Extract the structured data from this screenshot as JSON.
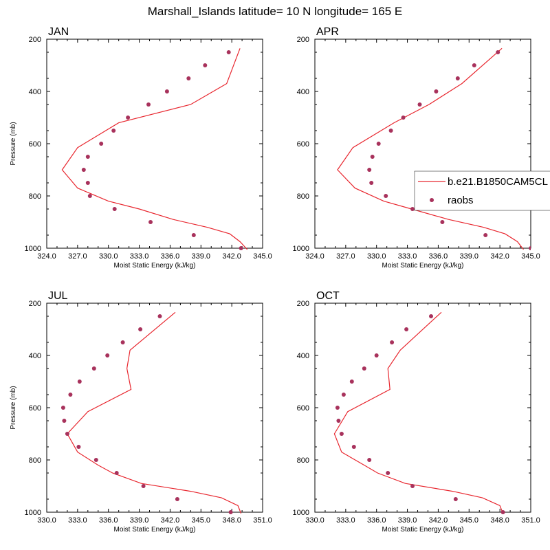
{
  "figure": {
    "title": "Marshall_Islands  latitude= 10 N longitude= 165 E"
  },
  "colors": {
    "model_line": "#e8262e",
    "obs_dot": "#a8325c",
    "axis": "#000000"
  },
  "legend": {
    "placement": "right of APR panel, partially clipped",
    "items": [
      {
        "label": "b.e21.B1850CAM5CL",
        "kind": "line"
      },
      {
        "label": "raobs",
        "kind": "dot"
      }
    ]
  },
  "chart_data": [
    {
      "type": "line+scatter",
      "panel": "JAN",
      "xlabel": "Moist Static Energy (kJ/kg)",
      "ylabel": "Pressure (mb)",
      "xlim": [
        324,
        345
      ],
      "ylim": [
        1000,
        200
      ],
      "xticks": [
        "324.0",
        "327.0",
        "330.0",
        "333.0",
        "336.0",
        "339.0",
        "342.0",
        "345.0"
      ],
      "yticks": [
        "200",
        "400",
        "600",
        "800",
        "1000"
      ],
      "series": [
        {
          "name": "b.e21.B1850CAM5CL",
          "x": [
            343.5,
            342.8,
            341.8,
            339.6,
            336.3,
            333.0,
            330.0,
            327.0,
            325.5,
            327.0,
            331.0,
            338.0,
            341.5,
            342.8
          ],
          "y": [
            1005,
            975,
            945,
            920,
            890,
            850,
            820,
            770,
            700,
            615,
            520,
            450,
            370,
            235
          ]
        },
        {
          "name": "raobs",
          "x": [
            342.9,
            338.3,
            334.1,
            330.6,
            328.2,
            328.0,
            327.6,
            328.0,
            329.3,
            330.5,
            331.9,
            333.9,
            335.7,
            337.8,
            339.4,
            341.7
          ],
          "y": [
            1000,
            950,
            900,
            850,
            800,
            750,
            700,
            650,
            600,
            550,
            500,
            450,
            400,
            350,
            300,
            250
          ]
        }
      ]
    },
    {
      "type": "line+scatter",
      "panel": "APR",
      "xlabel": "Moist Static Energy (kJ/kg)",
      "ylabel": "",
      "xlim": [
        324,
        345
      ],
      "ylim": [
        1000,
        200
      ],
      "xticks": [
        "324.0",
        "327.0",
        "330.0",
        "333.0",
        "336.0",
        "339.0",
        "342.0",
        "345.0"
      ],
      "yticks": [
        "200",
        "400",
        "600",
        "800",
        "1000"
      ],
      "series": [
        {
          "name": "b.e21.B1850CAM5CL",
          "x": [
            344.3,
            343.7,
            342.5,
            340.4,
            337.0,
            333.4,
            330.7,
            327.9,
            326.2,
            327.7,
            331.7,
            335.1,
            338.3,
            342.2
          ],
          "y": [
            1005,
            975,
            945,
            920,
            890,
            850,
            820,
            770,
            700,
            615,
            520,
            450,
            370,
            235
          ]
        },
        {
          "name": "raobs",
          "x": [
            345.0,
            340.6,
            336.4,
            333.5,
            330.9,
            329.5,
            329.3,
            329.6,
            330.2,
            331.4,
            332.6,
            334.2,
            335.8,
            337.9,
            339.5,
            341.8
          ],
          "y": [
            1000,
            950,
            900,
            850,
            800,
            750,
            700,
            650,
            600,
            550,
            500,
            450,
            400,
            350,
            300,
            250
          ]
        }
      ]
    },
    {
      "type": "line+scatter",
      "panel": "JUL",
      "xlabel": "Moist Static Energy (kJ/kg)",
      "ylabel": "Pressure (mb)",
      "xlim": [
        330,
        351
      ],
      "ylim": [
        1000,
        200
      ],
      "xticks": [
        "330.0",
        "333.0",
        "336.0",
        "339.0",
        "342.0",
        "345.0",
        "348.0",
        "351.0"
      ],
      "yticks": [
        "200",
        "400",
        "600",
        "800",
        "1000"
      ],
      "series": [
        {
          "name": "b.e21.B1850CAM5CL",
          "x": [
            348.9,
            348.6,
            347.0,
            344.0,
            339.2,
            336.4,
            335.0,
            333.0,
            332.0,
            334.0,
            338.2,
            337.8,
            338.1,
            342.5
          ],
          "y": [
            1005,
            975,
            945,
            920,
            890,
            850,
            820,
            770,
            700,
            615,
            530,
            450,
            380,
            235
          ]
        },
        {
          "name": "raobs",
          "x": [
            347.9,
            342.7,
            339.4,
            336.8,
            334.8,
            333.1,
            332.0,
            331.7,
            331.6,
            332.3,
            333.2,
            334.6,
            335.9,
            337.4,
            339.1,
            341.0
          ],
          "y": [
            1000,
            950,
            900,
            850,
            800,
            750,
            700,
            650,
            600,
            550,
            500,
            450,
            400,
            350,
            300,
            250
          ]
        }
      ]
    },
    {
      "type": "line+scatter",
      "panel": "OCT",
      "xlabel": "Moist Static Energy (kJ/kg)",
      "ylabel": "",
      "xlim": [
        330,
        351
      ],
      "ylim": [
        1000,
        200
      ],
      "xticks": [
        "330.0",
        "333.0",
        "336.0",
        "339.0",
        "342.0",
        "345.0",
        "348.0",
        "351.0"
      ],
      "yticks": [
        "200",
        "400",
        "600",
        "800",
        "1000"
      ],
      "series": [
        {
          "name": "b.e21.B1850CAM5CL",
          "x": [
            348.3,
            348.0,
            346.3,
            343.4,
            338.8,
            336.1,
            334.8,
            332.6,
            331.9,
            333.2,
            337.3,
            337.1,
            338.3,
            342.3
          ],
          "y": [
            1005,
            975,
            945,
            920,
            890,
            850,
            820,
            770,
            700,
            615,
            530,
            450,
            380,
            235
          ]
        },
        {
          "name": "raobs",
          "x": [
            348.3,
            343.7,
            339.5,
            337.1,
            335.3,
            333.8,
            332.6,
            332.3,
            332.2,
            332.8,
            333.6,
            334.8,
            336.0,
            337.5,
            338.9,
            341.3
          ],
          "y": [
            1000,
            950,
            900,
            850,
            800,
            750,
            700,
            650,
            600,
            550,
            500,
            450,
            400,
            350,
            300,
            250
          ]
        }
      ]
    }
  ]
}
